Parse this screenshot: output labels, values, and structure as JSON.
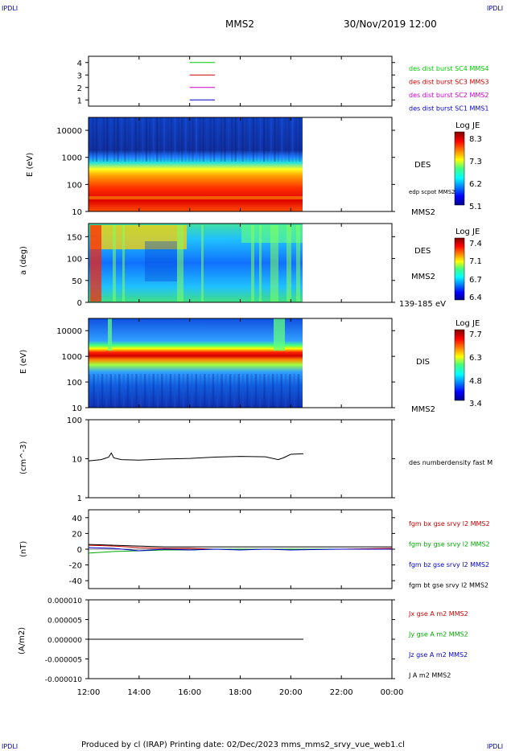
{
  "header": {
    "corner_tl": "IPDLI",
    "corner_tr": "IPDLI",
    "corner_bl": "IPDLI",
    "corner_br": "IPDLI",
    "title": "MMS2",
    "datetime": "30/Nov/2019 12:00",
    "footer": "Produced by cl (IRAP)   Printing date: 02/Dec/2023   mms_mms2_srvy_vue_web1.cl"
  },
  "time_axis": {
    "ticks": [
      "12:00",
      "14:00",
      "16:00",
      "18:00",
      "20:00",
      "22:00",
      "00:00"
    ]
  },
  "chart_data": [
    {
      "type": "line",
      "panel": "spacecraft-availability",
      "yticks": [
        "1",
        "2",
        "3",
        "4"
      ],
      "ylim": [
        0.5,
        4.5
      ],
      "legend": [
        {
          "label": "des dist burst SC1 MMS1",
          "color": "#0000cc",
          "level": 1
        },
        {
          "label": "des dist burst SC2 MMS2",
          "color": "#cc00cc",
          "level": 2
        },
        {
          "label": "des dist burst SC3 MMS3",
          "color": "#cc0000",
          "level": 3
        },
        {
          "label": "des dist burst SC4 MMS4",
          "color": "#00cc00",
          "level": 4
        }
      ],
      "segment_hours": [
        16.0,
        17.0
      ]
    },
    {
      "type": "heatmap",
      "panel": "des-energy-spectrogram",
      "ylabel": "E (eV)",
      "yscale": "log",
      "ylim": [
        10,
        30000
      ],
      "yticks": [
        "10",
        "100",
        "1000",
        "10000"
      ],
      "data_end_hour": 20.5,
      "right_labels": [
        "DES",
        "edp scpot MMS2",
        "MMS2"
      ],
      "colorbar": {
        "title": "Log JE",
        "ticks": [
          "8.3",
          "7.3",
          "6.2",
          "5.1"
        ],
        "range": [
          5.1,
          8.3
        ]
      }
    },
    {
      "type": "heatmap",
      "panel": "des-pitch-angle",
      "ylabel": "a (deg)",
      "ylim": [
        0,
        180
      ],
      "yticks": [
        "0",
        "50",
        "100",
        "150"
      ],
      "data_end_hour": 20.5,
      "right_labels": [
        "DES",
        "MMS2",
        "139-185 eV"
      ],
      "colorbar": {
        "title": "Log JE",
        "ticks": [
          "7.4",
          "7.1",
          "6.7",
          "6.4"
        ],
        "range": [
          6.4,
          7.4
        ]
      }
    },
    {
      "type": "heatmap",
      "panel": "dis-energy-spectrogram",
      "ylabel": "E (eV)",
      "yscale": "log",
      "ylim": [
        10,
        30000
      ],
      "yticks": [
        "10",
        "100",
        "1000",
        "10000"
      ],
      "data_end_hour": 20.5,
      "right_labels": [
        "DIS",
        "MMS2"
      ],
      "colorbar": {
        "title": "Log JE",
        "ticks": [
          "7.7",
          "6.3",
          "4.8",
          "3.4"
        ],
        "range": [
          3.4,
          7.7
        ]
      }
    },
    {
      "type": "line",
      "panel": "number-density",
      "ylabel": "(cm^-3)",
      "yscale": "log",
      "ylim": [
        1,
        100
      ],
      "yticks": [
        "1",
        "10",
        "100"
      ],
      "legend": [
        {
          "label": "des numberdensity fast M",
          "color": "#000000"
        }
      ],
      "series": [
        {
          "name": "des numberdensity fast M",
          "x_hours": [
            12.0,
            12.5,
            12.8,
            12.9,
            13.0,
            13.3,
            14.0,
            15.0,
            16.0,
            17.0,
            18.0,
            19.0,
            19.5,
            19.7,
            20.0,
            20.5
          ],
          "values": [
            8.8,
            9.5,
            11,
            14,
            10.5,
            9.5,
            9.2,
            9.8,
            10.2,
            11.0,
            11.5,
            11.2,
            9.5,
            10.5,
            13,
            13.5
          ]
        }
      ]
    },
    {
      "type": "line",
      "panel": "magnetic-field",
      "ylabel": "(nT)",
      "ylim": [
        -50,
        50
      ],
      "yticks": [
        "-40",
        "-20",
        "0",
        "20",
        "40"
      ],
      "legend": [
        {
          "label": "fgm bx gse srvy l2 MMS2",
          "color": "#cc0000"
        },
        {
          "label": "fgm by gse srvy l2 MMS2",
          "color": "#00aa00"
        },
        {
          "label": "fgm bz gse srvy l2 MMS2",
          "color": "#0000cc"
        },
        {
          "label": "fgm bt gse srvy l2 MMS2",
          "color": "#000000"
        }
      ],
      "series": [
        {
          "name": "fgm bx gse srvy l2 MMS2",
          "x_hours": [
            12,
            13,
            14,
            15,
            16,
            17,
            18,
            19,
            20,
            22,
            24
          ],
          "values": [
            5,
            4,
            2,
            1,
            1,
            0,
            0,
            0,
            0,
            0,
            1
          ]
        },
        {
          "name": "fgm by gse srvy l2 MMS2",
          "x_hours": [
            12,
            13,
            14,
            15,
            16,
            17,
            18,
            19,
            20,
            22,
            24
          ],
          "values": [
            -5,
            -3,
            -2,
            -1,
            -1,
            0,
            0,
            0,
            0,
            0,
            0
          ]
        },
        {
          "name": "fgm bz gse srvy l2 MMS2",
          "x_hours": [
            12,
            13,
            14,
            15,
            16,
            17,
            18,
            19,
            20,
            22,
            24
          ],
          "values": [
            2,
            1,
            -2,
            0,
            -1,
            0,
            -1,
            0,
            -1,
            0,
            0
          ]
        },
        {
          "name": "fgm bt gse srvy l2 MMS2",
          "x_hours": [
            12,
            13,
            14,
            15,
            16,
            17,
            18,
            19,
            20,
            22,
            24
          ],
          "values": [
            6,
            5,
            4,
            3,
            3,
            3,
            3,
            3,
            3,
            3,
            3
          ]
        }
      ]
    },
    {
      "type": "line",
      "panel": "current-density",
      "ylabel": "(A/m2)",
      "ylim": [
        -1e-05,
        1e-05
      ],
      "yticks": [
        "-0.000010",
        "-0.000005",
        "0.000000",
        "0.000005",
        "0.000010"
      ],
      "legend": [
        {
          "label": "Jx gse A m2 MMS2",
          "color": "#cc0000"
        },
        {
          "label": "Jy gse A m2 MMS2",
          "color": "#00aa00"
        },
        {
          "label": "Jz gse A m2 MMS2",
          "color": "#0000cc"
        },
        {
          "label": "J A m2 MMS2",
          "color": "#000000"
        }
      ],
      "series": [
        {
          "name": "J A m2 MMS2",
          "x_hours": [
            12,
            20.5
          ],
          "values": [
            0,
            0
          ]
        }
      ]
    }
  ]
}
